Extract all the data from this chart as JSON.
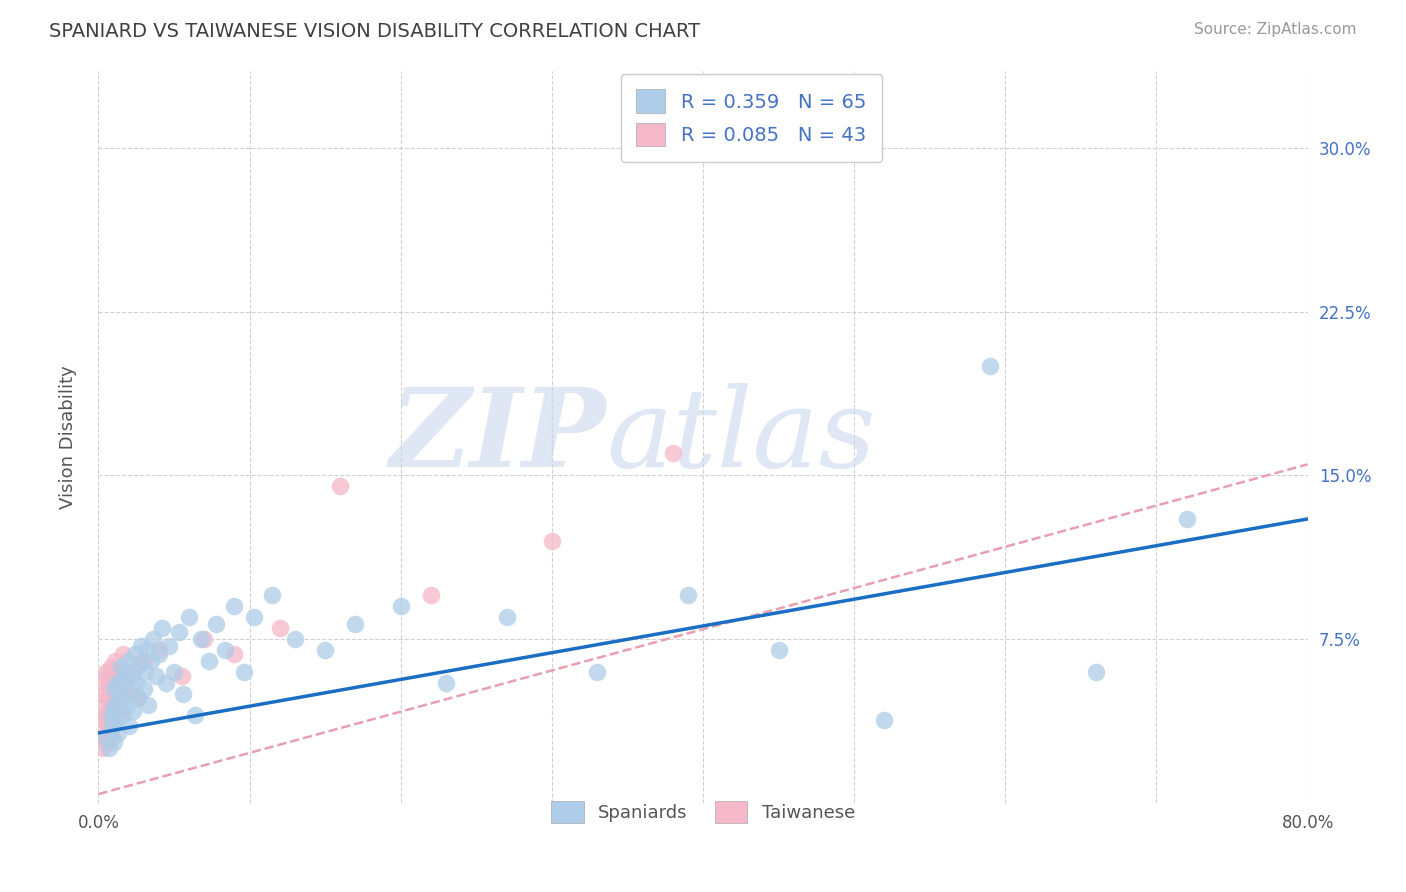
{
  "title": "SPANIARD VS TAIWANESE VISION DISABILITY CORRELATION CHART",
  "source_text": "Source: ZipAtlas.com",
  "ylabel": "Vision Disability",
  "xlim": [
    0.0,
    0.8
  ],
  "ylim": [
    0.0,
    0.335
  ],
  "xticks": [
    0.0,
    0.1,
    0.2,
    0.3,
    0.4,
    0.5,
    0.6,
    0.7,
    0.8
  ],
  "xticklabels": [
    "0.0%",
    "",
    "",
    "",
    "",
    "",
    "",
    "",
    "80.0%"
  ],
  "ytick_positions": [
    0.0,
    0.075,
    0.15,
    0.225,
    0.3
  ],
  "right_yticklabels": [
    "",
    "7.5%",
    "15.0%",
    "22.5%",
    "30.0%"
  ],
  "left_yticklabels": [
    "",
    "",
    "",
    "",
    ""
  ],
  "grid_color": "#cccccc",
  "background_color": "#ffffff",
  "title_color": "#404040",
  "source_color": "#888888",
  "spaniard_color": "#aecde8",
  "taiwanese_color": "#f4b8c8",
  "spaniard_line_color": "#1a6fc4",
  "taiwanese_line_color": "#e8a0b0",
  "spaniard_R": 0.359,
  "spaniard_N": 65,
  "taiwanese_R": 0.085,
  "taiwanese_N": 43,
  "spaniard_scatter_x": [
    0.005,
    0.007,
    0.008,
    0.009,
    0.01,
    0.01,
    0.01,
    0.011,
    0.012,
    0.012,
    0.013,
    0.014,
    0.015,
    0.015,
    0.016,
    0.017,
    0.018,
    0.019,
    0.02,
    0.02,
    0.021,
    0.022,
    0.023,
    0.024,
    0.025,
    0.026,
    0.027,
    0.028,
    0.03,
    0.031,
    0.032,
    0.033,
    0.035,
    0.036,
    0.038,
    0.04,
    0.042,
    0.045,
    0.047,
    0.05,
    0.053,
    0.056,
    0.06,
    0.064,
    0.068,
    0.073,
    0.078,
    0.084,
    0.09,
    0.096,
    0.103,
    0.115,
    0.13,
    0.15,
    0.17,
    0.2,
    0.23,
    0.27,
    0.33,
    0.39,
    0.45,
    0.52,
    0.59,
    0.66,
    0.72
  ],
  "spaniard_scatter_y": [
    0.03,
    0.025,
    0.04,
    0.035,
    0.028,
    0.045,
    0.052,
    0.038,
    0.043,
    0.055,
    0.032,
    0.048,
    0.05,
    0.062,
    0.04,
    0.057,
    0.044,
    0.06,
    0.035,
    0.065,
    0.05,
    0.058,
    0.042,
    0.068,
    0.055,
    0.048,
    0.063,
    0.072,
    0.052,
    0.06,
    0.07,
    0.045,
    0.065,
    0.075,
    0.058,
    0.068,
    0.08,
    0.055,
    0.072,
    0.06,
    0.078,
    0.05,
    0.085,
    0.04,
    0.075,
    0.065,
    0.082,
    0.07,
    0.09,
    0.06,
    0.085,
    0.095,
    0.075,
    0.07,
    0.082,
    0.09,
    0.055,
    0.085,
    0.06,
    0.095,
    0.07,
    0.038,
    0.2,
    0.06,
    0.13
  ],
  "taiwanese_scatter_x": [
    0.003,
    0.003,
    0.004,
    0.004,
    0.004,
    0.005,
    0.005,
    0.005,
    0.005,
    0.006,
    0.006,
    0.006,
    0.007,
    0.007,
    0.007,
    0.008,
    0.008,
    0.008,
    0.009,
    0.009,
    0.01,
    0.01,
    0.011,
    0.011,
    0.012,
    0.013,
    0.014,
    0.015,
    0.016,
    0.018,
    0.02,
    0.023,
    0.026,
    0.03,
    0.04,
    0.055,
    0.07,
    0.09,
    0.12,
    0.16,
    0.22,
    0.3,
    0.38
  ],
  "taiwanese_scatter_y": [
    0.025,
    0.038,
    0.03,
    0.045,
    0.055,
    0.028,
    0.04,
    0.05,
    0.06,
    0.035,
    0.048,
    0.058,
    0.032,
    0.042,
    0.055,
    0.038,
    0.05,
    0.062,
    0.03,
    0.058,
    0.045,
    0.06,
    0.04,
    0.065,
    0.052,
    0.048,
    0.058,
    0.042,
    0.068,
    0.055,
    0.05,
    0.06,
    0.048,
    0.065,
    0.07,
    0.058,
    0.075,
    0.068,
    0.08,
    0.145,
    0.095,
    0.12,
    0.16
  ],
  "sp_line_x0": 0.0,
  "sp_line_y0": 0.032,
  "sp_line_x1": 0.8,
  "sp_line_y1": 0.13,
  "tw_line_x0": 0.0,
  "tw_line_y0": 0.004,
  "tw_line_x1": 0.8,
  "tw_line_y1": 0.155
}
